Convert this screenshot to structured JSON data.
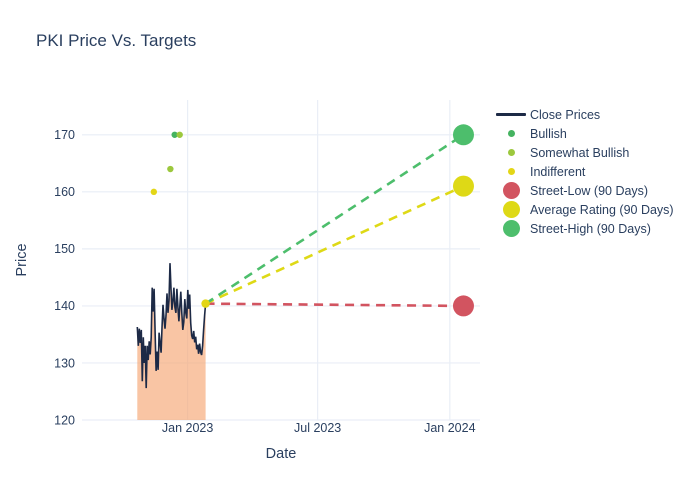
{
  "title": "PKI Price Vs. Targets",
  "colors": {
    "text": "#2a3f5f",
    "grid": "#e9eef6",
    "close_line": "#1d2a46",
    "area_fill": "rgba(246,161,108,0.62)",
    "bullish": "#45b360",
    "somewhat_bullish": "#9cc83d",
    "indifferent": "#e3d616",
    "street_low": "#d25460",
    "average": "#ded916",
    "street_high": "#4dbe6c"
  },
  "legend": {
    "items": [
      {
        "id": "close-prices",
        "label": "Close Prices",
        "swatch": "line",
        "color_key": "close_line"
      },
      {
        "id": "bullish",
        "label": "Bullish",
        "swatch": "dot-small",
        "color_key": "bullish"
      },
      {
        "id": "somewhat-bullish",
        "label": "Somewhat Bullish",
        "swatch": "dot-small",
        "color_key": "somewhat_bullish"
      },
      {
        "id": "indifferent",
        "label": "Indifferent",
        "swatch": "dot-small",
        "color_key": "indifferent"
      },
      {
        "id": "street-low",
        "label": "Street-Low (90 Days)",
        "swatch": "dot-large",
        "color_key": "street_low"
      },
      {
        "id": "average-rating",
        "label": "Average Rating (90 Days)",
        "swatch": "dot-large",
        "color_key": "average"
      },
      {
        "id": "street-high",
        "label": "Street-High (90 Days)",
        "swatch": "dot-large",
        "color_key": "street_high"
      }
    ]
  },
  "chart_data": {
    "type": "line",
    "title": "PKI Price Vs. Targets",
    "xlabel": "Date",
    "ylabel": "Price",
    "grid": true,
    "legend_position": "right",
    "xaxis": {
      "range": [
        "2022-08-07",
        "2024-02-12"
      ],
      "ticks": [
        {
          "label": "Jan 2023",
          "date": "2023-01-01"
        },
        {
          "label": "Jul 2023",
          "date": "2023-07-01"
        },
        {
          "label": "Jan 2024",
          "date": "2024-01-01"
        }
      ]
    },
    "yaxis": {
      "range": [
        120,
        176.1
      ],
      "ticks": [
        120,
        130,
        140,
        150,
        160,
        170
      ]
    },
    "close_series": {
      "name": "Close Prices",
      "date_start": "2022-10-23",
      "date_end": "2023-01-26",
      "prices": [
        136.3,
        133.0,
        136.0,
        133.5,
        135.8,
        126.8,
        134.5,
        130.0,
        133.0,
        125.6,
        133.0,
        130.5,
        133.8,
        131.5,
        134.5,
        143.2,
        139.0,
        143.0,
        135.5,
        128.6,
        132.0,
        128.8,
        135.3,
        133.5,
        131.8,
        136.2,
        140.2,
        137.8,
        136.0,
        138.3,
        142.2,
        138.8,
        141.0,
        147.5,
        143.5,
        139.3,
        140.8,
        143.2,
        139.8,
        138.8,
        143.0,
        139.8,
        137.3,
        139.8,
        142.5,
        138.8,
        135.8,
        137.2,
        141.2,
        138.8,
        137.8,
        142.8,
        139.5,
        142.0,
        137.0,
        134.8,
        134.2,
        135.6,
        133.6,
        134.6,
        132.4,
        133.2,
        131.6,
        133.4,
        131.9,
        131.4,
        133.0,
        135.8,
        138.3,
        140.4
      ]
    },
    "ratings": [
      {
        "date": "2022-11-15",
        "price": 160.0,
        "type": "indifferent",
        "r": 3.2
      },
      {
        "date": "2022-12-08",
        "price": 164.0,
        "type": "somewhat_bullish",
        "r": 3.2
      },
      {
        "date": "2022-12-14",
        "price": 170.0,
        "type": "bullish",
        "r": 3.2
      },
      {
        "date": "2022-12-21",
        "price": 170.0,
        "type": "somewhat_bullish",
        "r": 3.2
      },
      {
        "date": "2023-01-26",
        "price": 140.4,
        "type": "indifferent",
        "r": 4.2
      }
    ],
    "targets": {
      "date": "2024-01-20",
      "anchor": {
        "date": "2023-01-26",
        "price": 140.4
      },
      "street_low": 140,
      "average": 161,
      "street_high": 170
    }
  }
}
